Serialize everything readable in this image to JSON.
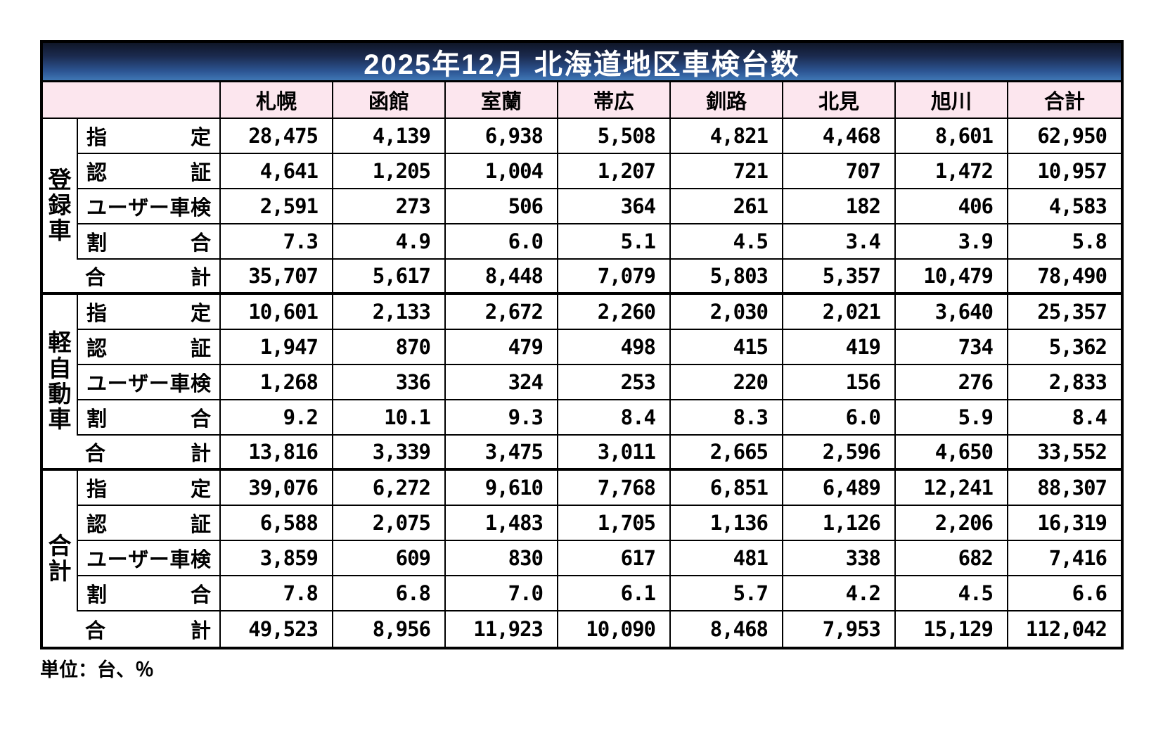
{
  "chart_data": {
    "type": "table",
    "title": "2025年12月  北海道地区車検台数",
    "unit_note": "単位：台、％",
    "columns": [
      "札幌",
      "函館",
      "室蘭",
      "帯広",
      "釧路",
      "北見",
      "旭川",
      "合計"
    ],
    "groups": [
      {
        "name": "登録車",
        "rows": [
          {
            "label": "指定",
            "values": [
              "28,475",
              "4,139",
              "6,938",
              "5,508",
              "4,821",
              "4,468",
              "8,601",
              "62,950"
            ]
          },
          {
            "label": "認証",
            "values": [
              "4,641",
              "1,205",
              "1,004",
              "1,207",
              "721",
              "707",
              "1,472",
              "10,957"
            ]
          },
          {
            "label": "ユーザー車検",
            "values": [
              "2,591",
              "273",
              "506",
              "364",
              "261",
              "182",
              "406",
              "4,583"
            ]
          },
          {
            "label": "割合",
            "values": [
              "7.3",
              "4.9",
              "6.0",
              "5.1",
              "4.5",
              "3.4",
              "3.9",
              "5.8"
            ]
          },
          {
            "label": "合計",
            "is_total": true,
            "values": [
              "35,707",
              "5,617",
              "8,448",
              "7,079",
              "5,803",
              "5,357",
              "10,479",
              "78,490"
            ]
          }
        ]
      },
      {
        "name": "軽自動車",
        "rows": [
          {
            "label": "指定",
            "values": [
              "10,601",
              "2,133",
              "2,672",
              "2,260",
              "2,030",
              "2,021",
              "3,640",
              "25,357"
            ]
          },
          {
            "label": "認証",
            "values": [
              "1,947",
              "870",
              "479",
              "498",
              "415",
              "419",
              "734",
              "5,362"
            ]
          },
          {
            "label": "ユーザー車検",
            "values": [
              "1,268",
              "336",
              "324",
              "253",
              "220",
              "156",
              "276",
              "2,833"
            ]
          },
          {
            "label": "割合",
            "values": [
              "9.2",
              "10.1",
              "9.3",
              "8.4",
              "8.3",
              "6.0",
              "5.9",
              "8.4"
            ]
          },
          {
            "label": "合計",
            "is_total": true,
            "values": [
              "13,816",
              "3,339",
              "3,475",
              "3,011",
              "2,665",
              "2,596",
              "4,650",
              "33,552"
            ]
          }
        ]
      },
      {
        "name": "合計",
        "rows": [
          {
            "label": "指定",
            "values": [
              "39,076",
              "6,272",
              "9,610",
              "7,768",
              "6,851",
              "6,489",
              "12,241",
              "88,307"
            ]
          },
          {
            "label": "認証",
            "values": [
              "6,588",
              "2,075",
              "1,483",
              "1,705",
              "1,136",
              "1,126",
              "2,206",
              "16,319"
            ]
          },
          {
            "label": "ユーザー車検",
            "values": [
              "3,859",
              "609",
              "830",
              "617",
              "481",
              "338",
              "682",
              "7,416"
            ]
          },
          {
            "label": "割合",
            "values": [
              "7.8",
              "6.8",
              "7.0",
              "6.1",
              "5.7",
              "4.2",
              "4.5",
              "6.6"
            ]
          },
          {
            "label": "合計",
            "is_total": true,
            "values": [
              "49,523",
              "8,956",
              "11,923",
              "10,090",
              "8,468",
              "7,953",
              "15,129",
              "112,042"
            ]
          }
        ]
      }
    ],
    "colors": {
      "title_gradient_top": "#0f1628",
      "title_gradient_bottom": "#3f77b5",
      "title_text": "#ffffff",
      "header_pink": "#fce6ee",
      "border": "#000000",
      "cell_background": "#ffffff"
    }
  }
}
